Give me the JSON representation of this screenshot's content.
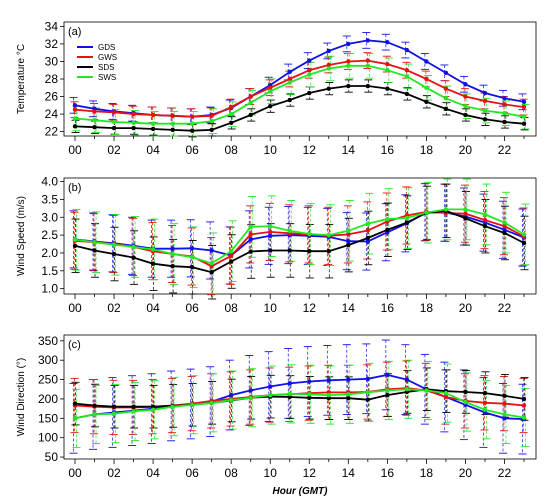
{
  "xlabel": "Hour (GMT)",
  "series_meta": [
    {
      "name": "GDS",
      "color": "#1010e8"
    },
    {
      "name": "GWS",
      "color": "#e81010"
    },
    {
      "name": "SDS",
      "color": "#000000"
    },
    {
      "name": "SWS",
      "color": "#22e822"
    }
  ],
  "chart_data": [
    {
      "type": "line",
      "panel_label": "(a)",
      "ylabel": "Temperature °C",
      "x": [
        0,
        1,
        2,
        3,
        4,
        5,
        6,
        7,
        8,
        9,
        10,
        11,
        12,
        13,
        14,
        15,
        16,
        17,
        18,
        19,
        20,
        21,
        22,
        23
      ],
      "xticks": [
        "00",
        "02",
        "04",
        "06",
        "08",
        "10",
        "12",
        "14",
        "16",
        "18",
        "20",
        "22"
      ],
      "ylim": [
        21.5,
        34.5
      ],
      "yticks": [
        22,
        24,
        26,
        28,
        30,
        32,
        34
      ],
      "legend_placement": "top-left",
      "series": [
        {
          "name": "GDS",
          "values": [
            25.0,
            24.6,
            24.3,
            24.1,
            23.9,
            23.8,
            23.7,
            23.9,
            24.7,
            26.0,
            27.3,
            28.8,
            30.1,
            31.2,
            32.0,
            32.4,
            32.2,
            31.3,
            30.0,
            28.7,
            27.4,
            26.4,
            25.8,
            25.4
          ],
          "err": 0.9
        },
        {
          "name": "GWS",
          "values": [
            24.5,
            24.3,
            24.2,
            24.0,
            23.9,
            23.8,
            23.7,
            23.8,
            24.8,
            26.0,
            27.0,
            28.0,
            29.0,
            29.6,
            30.0,
            30.1,
            29.7,
            29.0,
            28.0,
            26.9,
            26.0,
            25.5,
            25.1,
            24.8
          ],
          "err": 0.9
        },
        {
          "name": "SDS",
          "values": [
            22.6,
            22.5,
            22.4,
            22.4,
            22.3,
            22.2,
            22.1,
            22.2,
            23.0,
            23.9,
            24.9,
            25.6,
            26.4,
            26.9,
            27.2,
            27.2,
            26.9,
            26.3,
            25.4,
            24.6,
            23.9,
            23.4,
            23.1,
            22.9
          ],
          "err": 0.7
        },
        {
          "name": "SWS",
          "values": [
            23.5,
            23.3,
            23.1,
            23.0,
            22.9,
            22.9,
            22.9,
            23.2,
            24.0,
            25.3,
            26.6,
            27.6,
            28.5,
            29.2,
            29.5,
            29.5,
            29.0,
            28.3,
            27.0,
            25.8,
            24.9,
            24.4,
            24.1,
            23.7
          ],
          "err": 1.4
        }
      ]
    },
    {
      "type": "line",
      "panel_label": "(b)",
      "ylabel": "Wind Speed (m/s)",
      "x": [
        0,
        1,
        2,
        3,
        4,
        5,
        6,
        7,
        8,
        9,
        10,
        11,
        12,
        13,
        14,
        15,
        16,
        17,
        18,
        19,
        20,
        21,
        22,
        23
      ],
      "xticks": [
        "00",
        "02",
        "04",
        "06",
        "08",
        "10",
        "12",
        "14",
        "16",
        "18",
        "20",
        "22"
      ],
      "ylim": [
        0.85,
        4.1
      ],
      "yticks": [
        "1.0",
        "1.5",
        "2.0",
        "2.5",
        "3.0",
        "3.5",
        "4.0"
      ],
      "series": [
        {
          "name": "GDS",
          "values": [
            2.38,
            2.32,
            2.27,
            2.2,
            2.12,
            2.12,
            2.13,
            2.07,
            1.93,
            2.38,
            2.48,
            2.5,
            2.48,
            2.45,
            2.33,
            2.32,
            2.58,
            2.83,
            3.14,
            3.13,
            3.02,
            2.85,
            2.65,
            2.43
          ],
          "err": 0.8
        },
        {
          "name": "GWS",
          "values": [
            2.34,
            2.3,
            2.25,
            2.17,
            2.05,
            1.97,
            1.9,
            1.63,
            1.92,
            2.52,
            2.59,
            2.55,
            2.52,
            2.48,
            2.52,
            2.63,
            2.88,
            3.05,
            3.15,
            3.12,
            3.1,
            2.92,
            2.75,
            2.46
          ],
          "err": 0.8
        },
        {
          "name": "SDS",
          "values": [
            2.2,
            2.07,
            1.97,
            1.87,
            1.7,
            1.63,
            1.6,
            1.46,
            1.76,
            2.04,
            2.07,
            2.07,
            2.05,
            2.05,
            2.22,
            2.42,
            2.65,
            2.85,
            3.12,
            3.18,
            2.97,
            2.75,
            2.56,
            2.28
          ],
          "err": 0.75
        },
        {
          "name": "SWS",
          "values": [
            2.37,
            2.3,
            2.23,
            2.17,
            2.1,
            1.97,
            1.88,
            1.71,
            2.05,
            2.73,
            2.75,
            2.62,
            2.53,
            2.5,
            2.62,
            2.82,
            2.95,
            2.98,
            3.13,
            3.22,
            3.22,
            3.08,
            2.85,
            2.52
          ],
          "err": 0.85
        }
      ]
    },
    {
      "type": "line",
      "panel_label": "(c)",
      "ylabel": "Wind Direction (°)",
      "x": [
        0,
        1,
        2,
        3,
        4,
        5,
        6,
        7,
        8,
        9,
        10,
        11,
        12,
        13,
        14,
        15,
        16,
        17,
        18,
        19,
        20,
        21,
        22,
        23
      ],
      "xticks": [
        "00",
        "02",
        "04",
        "06",
        "08",
        "10",
        "12",
        "14",
        "16",
        "18",
        "20",
        "22"
      ],
      "ylim": [
        45,
        365
      ],
      "yticks": [
        50,
        100,
        150,
        200,
        250,
        300,
        350
      ],
      "series": [
        {
          "name": "GDS",
          "values": [
            150,
            160,
            165,
            170,
            175,
            182,
            187,
            193,
            210,
            222,
            232,
            240,
            245,
            248,
            250,
            252,
            262,
            250,
            225,
            205,
            185,
            165,
            150,
            148
          ],
          "err": 90
        },
        {
          "name": "GWS",
          "values": [
            183,
            180,
            178,
            178,
            180,
            183,
            188,
            195,
            200,
            205,
            210,
            212,
            215,
            217,
            217,
            218,
            225,
            228,
            222,
            205,
            195,
            190,
            188,
            183
          ],
          "err": 70
        },
        {
          "name": "SDS",
          "values": [
            188,
            183,
            180,
            180,
            180,
            182,
            185,
            190,
            196,
            203,
            206,
            205,
            203,
            202,
            202,
            198,
            210,
            218,
            225,
            220,
            218,
            215,
            208,
            200
          ],
          "err": 55
        },
        {
          "name": "SWS",
          "values": [
            150,
            160,
            162,
            168,
            172,
            180,
            185,
            190,
            197,
            203,
            210,
            213,
            212,
            210,
            212,
            217,
            222,
            225,
            222,
            215,
            192,
            172,
            160,
            152
          ],
          "err": 75
        }
      ]
    }
  ]
}
